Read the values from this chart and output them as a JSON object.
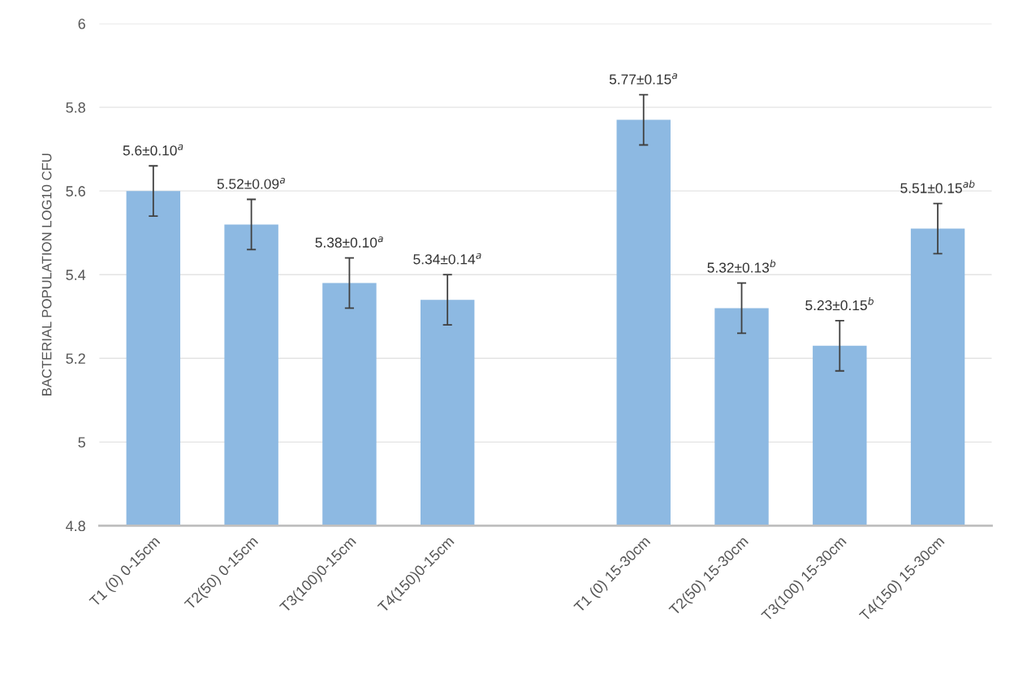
{
  "chart_data": {
    "type": "bar",
    "ylabel": "BACTERIAL POPULATION LOG10 CFU",
    "categories": [
      "T1 (0) 0-15cm",
      "T2(50) 0-15cm",
      "T3(100)0-15cm",
      "T4(150)0-15cm",
      null,
      "T1 (0) 15-30cm",
      "T2(50) 15-30cm",
      "T3(100) 15-30cm",
      "T4(150) 15-30cm"
    ],
    "values": [
      5.6,
      5.52,
      5.38,
      5.34,
      null,
      5.77,
      5.32,
      5.23,
      5.51
    ],
    "errors": [
      0.06,
      0.06,
      0.06,
      0.06,
      null,
      0.06,
      0.06,
      0.06,
      0.06
    ],
    "value_labels": [
      "5.6±0.10$^{a}$",
      "5.52±0.09$^{a}$",
      "5.38±0.10$^{a}$",
      "5.34±0.14$^{a}$",
      null,
      "5.77±0.15$^{a}$",
      "5.32±0.13$^{b}$",
      "5.23±0.15$^{b}$",
      "5.51±0.15$^{ab}$"
    ],
    "color": "#8db9e2",
    "ylim": [
      4.8,
      6
    ],
    "yticks": [
      4.8,
      5,
      5.2,
      5.4,
      5.6,
      5.8,
      6
    ],
    "grid": "y"
  }
}
